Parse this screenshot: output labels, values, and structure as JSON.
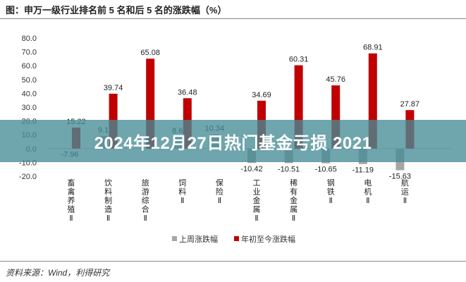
{
  "header": {
    "title": "图：申万一级行业排名前 5 名和后 5 名的涨跌幅（%）"
  },
  "overlay": {
    "text": "2024年12月27日热门基金亏损 2021"
  },
  "footer": {
    "source": "资料来源：Wind，利得研究"
  },
  "colors": {
    "weekly": "#a6a6a6",
    "ytd": "#c00000",
    "grid": "#d9d9d9",
    "overlay": "#468c96"
  },
  "chart_data": {
    "type": "bar",
    "categories": [
      "畜禽养殖Ⅱ",
      "饮料制造Ⅱ",
      "旅游综合Ⅱ",
      "饲料Ⅱ",
      "保险Ⅱ",
      "工业金属Ⅱ",
      "稀有金属Ⅱ",
      "钢铁Ⅱ",
      "电机Ⅱ",
      "航运Ⅱ"
    ],
    "category_lines": [
      [
        "畜",
        "禽",
        "养",
        "殖",
        "Ⅱ"
      ],
      [
        "饮",
        "料",
        "制",
        "造",
        "Ⅱ"
      ],
      [
        "旅",
        "游",
        "综",
        "合",
        "Ⅱ"
      ],
      [
        "饲",
        "料",
        "Ⅱ"
      ],
      [
        "保",
        "险",
        "Ⅱ"
      ],
      [
        "工",
        "业",
        "金",
        "属",
        "Ⅱ"
      ],
      [
        "稀",
        "有",
        "金",
        "属",
        "Ⅱ"
      ],
      [
        "钢",
        "铁",
        "Ⅱ"
      ],
      [
        "电",
        "机",
        "Ⅱ"
      ],
      [
        "航",
        "运",
        "Ⅱ"
      ]
    ],
    "series": [
      {
        "name": "上周涨跌幅",
        "values": [
          null,
          9.12,
          null,
          8.61,
          10.34,
          -10.42,
          -10.51,
          -10.65,
          -11.19,
          -15.63
        ],
        "labels": [
          "",
          "9.1",
          "",
          "8.6",
          "10.34",
          "-10.42",
          "-10.51",
          "-10.65",
          "-11.19",
          "-15.63"
        ]
      },
      {
        "name": "年初至今涨跌幅",
        "values": [
          15.22,
          39.74,
          65.08,
          36.48,
          null,
          34.69,
          60.31,
          45.76,
          68.91,
          27.87
        ],
        "labels": [
          "15.22",
          "39.74",
          "65.08",
          "36.48",
          "",
          "34.69",
          "60.31",
          "45.76",
          "68.91",
          "27.87"
        ]
      }
    ],
    "extra_labels": [
      {
        "category_index": 0,
        "text": "-7.96"
      }
    ],
    "ylim": [
      -20,
      80
    ],
    "yticks": [
      "80.0",
      "70.0",
      "60.0",
      "50.0",
      "40.0",
      "30.0",
      "20.0",
      "10.0",
      "0.0",
      "-10.0",
      "-20.0"
    ],
    "ytick_values": [
      80,
      70,
      60,
      50,
      40,
      30,
      20,
      10,
      0,
      -10,
      -20
    ],
    "legend_position": "bottom-center",
    "grid": false
  }
}
